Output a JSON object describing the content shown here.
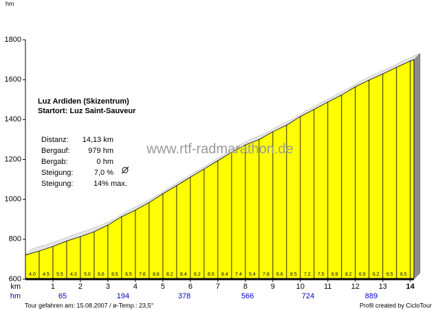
{
  "chart_data": {
    "type": "elevation-profile",
    "y_unit": "hm",
    "x_unit": "km",
    "climb_unit": "hm",
    "x": [
      0,
      0.5,
      1,
      1.5,
      2,
      2.5,
      3,
      3.5,
      4,
      4.5,
      5,
      5.5,
      6,
      6.5,
      7,
      7.5,
      8,
      8.5,
      9,
      9.5,
      10,
      10.5,
      11,
      11.5,
      12,
      12.5,
      13,
      13.5,
      14,
      14.13
    ],
    "values": [
      721,
      741,
      764,
      791,
      813,
      838,
      871,
      913,
      946,
      984,
      1028,
      1069,
      1111,
      1152,
      1194,
      1236,
      1273,
      1300,
      1339,
      1372,
      1415,
      1451,
      1488,
      1523,
      1564,
      1598,
      1629,
      1662,
      1694,
      1700
    ],
    "color": "#ffff00",
    "gradients": [
      4.0,
      4.5,
      5.5,
      4.3,
      5.0,
      6.6,
      8.5,
      6.5,
      7.6,
      8.8,
      8.2,
      8.4,
      8.2,
      8.5,
      8.4,
      7.4,
      5.4,
      7.8,
      6.6,
      8.5,
      7.2,
      7.5,
      6.9,
      8.2,
      6.9,
      6.2,
      6.5,
      6.5
    ],
    "gradient_labels": [
      "4.0",
      "4.5",
      "5.5",
      "4.3",
      "5.0",
      "6.6",
      "8.5",
      "6.5",
      "7.6",
      "8.8",
      "8.2",
      "8.4",
      "8.2",
      "8.5",
      "8.4",
      "7.4",
      "5.4",
      "7.8",
      "6.6",
      "8.5",
      "7.2",
      "7.5",
      "6.9",
      "8.2",
      "6.9",
      "6.2",
      "6.5",
      "6.5"
    ],
    "ylim": [
      600,
      1800
    ],
    "yticks": [
      600,
      800,
      1000,
      1200,
      1400,
      1600,
      1800
    ],
    "xlim": [
      0,
      14.13
    ],
    "xticks": [
      1,
      2,
      3,
      4,
      5,
      6,
      7,
      8,
      9,
      10,
      11,
      12,
      13,
      14
    ],
    "climb_x": [
      1.35,
      3.55,
      5.78,
      8.08,
      10.28,
      12.58
    ],
    "climb_values": [
      65,
      194,
      378,
      566,
      724,
      889
    ]
  },
  "info": {
    "title": "Luz Ardiden (Skizentrum)",
    "start": "Startort: Luz Saint-Sauveur",
    "stats": [
      [
        "Distanz:",
        "14,13 km"
      ],
      [
        "Bergauf:",
        "979 hm"
      ],
      [
        "Bergab:",
        "0 hm"
      ],
      [
        "Steigung:",
        "7,0 %"
      ],
      [
        "Steigung:",
        "14% max."
      ]
    ]
  },
  "watermark": "www.rtf-radmarathon.de",
  "footer": {
    "left": "Tour gefahren am: 15.08.2007  /  ø-Temp.: 23,5°",
    "right": "Profil created by CicloTour"
  }
}
